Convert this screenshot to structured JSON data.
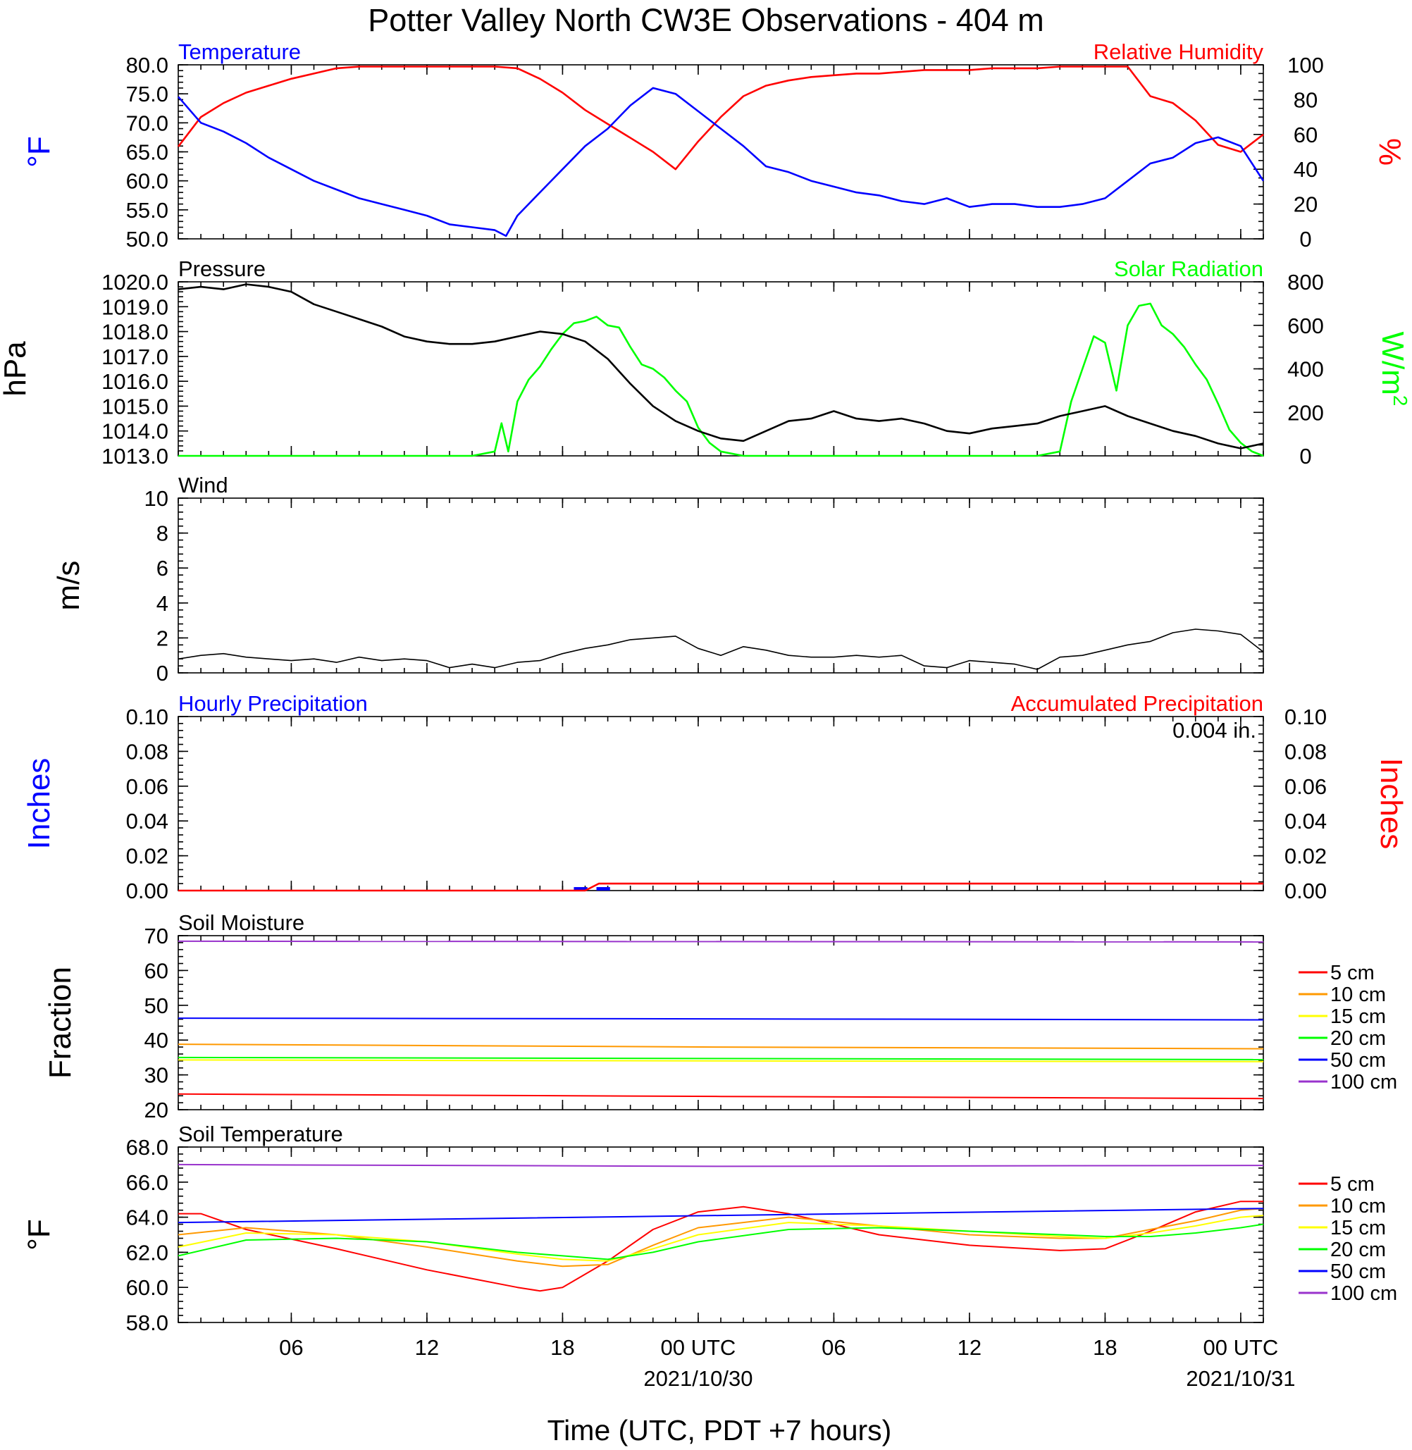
{
  "title": "Potter Valley North CW3E Observations - 404 m",
  "x_axis": {
    "label": "Time (UTC, PDT +7 hours)",
    "tick_labels": [
      "06",
      "12",
      "18",
      "00 UTC",
      "06",
      "12",
      "18",
      "00 UTC"
    ],
    "tick_hours": [
      6,
      12,
      18,
      24,
      30,
      36,
      42,
      48
    ],
    "date_labels": [
      {
        "hour": 24,
        "text": "2021/10/30"
      },
      {
        "hour": 48,
        "text": "2021/10/31"
      }
    ],
    "range_hours": [
      1,
      49
    ]
  },
  "colors": {
    "temperature": "#0000ff",
    "humidity": "#ff0000",
    "pressure": "#000000",
    "solar": "#00ff00",
    "wind_speed": "#000000",
    "wind_barb": "#ff0000",
    "hourly_precip": "#0000ff",
    "accum_precip": "#ff0000",
    "5 cm": "#ff0000",
    "10 cm": "#ff9900",
    "15 cm": "#ffff00",
    "20 cm": "#00ff00",
    "50 cm": "#0000ff",
    "100 cm": "#9933cc"
  },
  "panels": {
    "temp_rh": {
      "left_title": "Temperature",
      "right_title": "Relative Humidity",
      "left_ylabel": "°F",
      "right_ylabel": "%",
      "left_ticks": [
        "50.0",
        "55.0",
        "60.0",
        "65.0",
        "70.0",
        "75.0",
        "80.0"
      ],
      "right_ticks": [
        "0",
        "20",
        "40",
        "60",
        "80",
        "100"
      ]
    },
    "pressure_solar": {
      "left_title": "Pressure",
      "right_title": "Solar Radiation",
      "left_ylabel": "hPa",
      "right_ylabel": "W/m",
      "right_ylabel_sup": "2",
      "left_ticks": [
        "1013.0",
        "1014.0",
        "1015.0",
        "1016.0",
        "1017.0",
        "1018.0",
        "1019.0",
        "1020.0"
      ],
      "right_ticks": [
        "0",
        "200",
        "400",
        "600",
        "800"
      ]
    },
    "wind": {
      "left_title": "Wind",
      "left_ylabel": "m/s",
      "left_ticks": [
        "0",
        "2",
        "4",
        "6",
        "8",
        "10"
      ]
    },
    "precip": {
      "left_title": "Hourly Precipitation",
      "right_title": "Accumulated Precipitation",
      "total_label": "0.004 in.",
      "left_ylabel": "Inches",
      "right_ylabel": "Inches",
      "left_ticks": [
        "0.00",
        "0.02",
        "0.04",
        "0.06",
        "0.08",
        "0.10"
      ],
      "right_ticks": [
        "0.00",
        "0.02",
        "0.04",
        "0.06",
        "0.08",
        "0.10"
      ]
    },
    "soil_moisture": {
      "left_title": "Soil Moisture",
      "left_ylabel": "Fraction",
      "left_ticks": [
        "20",
        "30",
        "40",
        "50",
        "60",
        "70"
      ],
      "legend": [
        "5 cm",
        "10 cm",
        "15 cm",
        "20 cm",
        "50 cm",
        "100 cm"
      ]
    },
    "soil_temp": {
      "left_title": "Soil Temperature",
      "left_ylabel": "°F",
      "left_ticks": [
        "58.0",
        "60.0",
        "62.0",
        "64.0",
        "66.0",
        "68.0"
      ],
      "legend": [
        "5 cm",
        "10 cm",
        "15 cm",
        "20 cm",
        "50 cm",
        "100 cm"
      ]
    }
  },
  "chart_data": [
    {
      "type": "line",
      "title": "Temperature / Relative Humidity",
      "x_unit": "hours UTC from 2021/10/29 00 UTC",
      "ylim_left": [
        50,
        80
      ],
      "ylim_right": [
        0,
        100
      ],
      "series": [
        {
          "name": "Temperature",
          "axis": "left",
          "unit": "°F",
          "x": [
            1,
            2,
            3,
            4,
            5,
            6,
            7,
            8,
            9,
            10,
            11,
            12,
            13,
            14,
            15,
            15.5,
            16,
            17,
            18,
            19,
            20,
            21,
            22,
            23,
            24,
            25,
            26,
            27,
            28,
            29,
            30,
            31,
            32,
            33,
            34,
            35,
            36,
            37,
            38,
            39,
            40,
            41,
            42,
            43,
            44,
            45,
            46,
            47,
            48,
            49
          ],
          "y": [
            74.5,
            70,
            68.5,
            66.5,
            64,
            62,
            60,
            58.5,
            57,
            56,
            55,
            54,
            52.5,
            52,
            51.5,
            50.5,
            54,
            58,
            62,
            66,
            69,
            73,
            76,
            75,
            72,
            69,
            66,
            62.5,
            61.5,
            60,
            59,
            58,
            57.5,
            56.5,
            56,
            57,
            55.5,
            56,
            56,
            55.5,
            55.5,
            56,
            57,
            60,
            63,
            64,
            66.5,
            67.5,
            66,
            60
          ]
        },
        {
          "name": "Relative Humidity",
          "axis": "right",
          "unit": "%",
          "x": [
            1,
            2,
            3,
            4,
            5,
            6,
            7,
            8,
            9,
            10,
            11,
            12,
            13,
            14,
            15,
            16,
            17,
            18,
            19,
            20,
            21,
            22,
            23,
            24,
            25,
            26,
            27,
            28,
            29,
            30,
            31,
            32,
            33,
            34,
            35,
            36,
            37,
            38,
            39,
            40,
            41,
            42,
            43,
            44,
            45,
            46,
            47,
            48,
            49
          ],
          "y": [
            53,
            70,
            78,
            84,
            88,
            92,
            95,
            98,
            99,
            99,
            99,
            99,
            99,
            99,
            99,
            98,
            92,
            84,
            74,
            66,
            58,
            50,
            40,
            56,
            70,
            82,
            88,
            91,
            93,
            94,
            95,
            95,
            96,
            97,
            97,
            97,
            98,
            98,
            98,
            99,
            99,
            99,
            99,
            82,
            78,
            68,
            54,
            50,
            60
          ]
        }
      ]
    },
    {
      "type": "line",
      "title": "Pressure / Solar Radiation",
      "x_unit": "hours UTC from 2021/10/29 00 UTC",
      "ylim_left": [
        1013,
        1020
      ],
      "ylim_right": [
        0,
        800
      ],
      "series": [
        {
          "name": "Pressure",
          "axis": "left",
          "unit": "hPa",
          "x": [
            1,
            2,
            3,
            4,
            5,
            6,
            7,
            8,
            9,
            10,
            11,
            12,
            13,
            14,
            15,
            16,
            17,
            18,
            19,
            20,
            21,
            22,
            23,
            24,
            25,
            26,
            27,
            28,
            29,
            30,
            31,
            32,
            33,
            34,
            35,
            36,
            37,
            38,
            39,
            40,
            41,
            42,
            43,
            44,
            45,
            46,
            47,
            48,
            49
          ],
          "y": [
            1019.7,
            1019.8,
            1019.7,
            1019.9,
            1019.8,
            1019.6,
            1019.1,
            1018.8,
            1018.5,
            1018.2,
            1017.8,
            1017.6,
            1017.5,
            1017.5,
            1017.6,
            1017.8,
            1018.0,
            1017.9,
            1017.6,
            1016.9,
            1015.9,
            1015.0,
            1014.4,
            1014.0,
            1013.7,
            1013.6,
            1014.0,
            1014.4,
            1014.5,
            1014.8,
            1014.5,
            1014.4,
            1014.5,
            1014.3,
            1014.0,
            1013.9,
            1014.1,
            1014.2,
            1014.3,
            1014.6,
            1014.8,
            1015.0,
            1014.6,
            1014.3,
            1014.0,
            1013.8,
            1013.5,
            1013.3,
            1013.5
          ]
        },
        {
          "name": "Solar Radiation",
          "axis": "right",
          "unit": "W/m2",
          "x": [
            1,
            14,
            15,
            15.3,
            15.6,
            16,
            16.5,
            17,
            17.5,
            18,
            18.5,
            19,
            19.5,
            20,
            20.5,
            21,
            21.5,
            22,
            22.5,
            23,
            23.5,
            24,
            24.5,
            25,
            26,
            30,
            36,
            39,
            40,
            40.5,
            41,
            41.5,
            42,
            42.5,
            43,
            43.5,
            44,
            44.5,
            45,
            45.5,
            46,
            46.5,
            47,
            47.5,
            48,
            48.5,
            49
          ],
          "y": [
            0,
            0,
            20,
            150,
            20,
            250,
            350,
            410,
            490,
            560,
            610,
            620,
            640,
            600,
            590,
            500,
            420,
            400,
            360,
            300,
            250,
            130,
            60,
            20,
            0,
            0,
            0,
            0,
            20,
            250,
            400,
            550,
            520,
            300,
            600,
            690,
            700,
            600,
            560,
            500,
            420,
            350,
            240,
            120,
            60,
            20,
            0
          ]
        }
      ]
    },
    {
      "type": "line",
      "title": "Wind",
      "x_unit": "hours UTC from 2021/10/29 00 UTC",
      "ylim": [
        0,
        10
      ],
      "series": [
        {
          "name": "Wind speed",
          "unit": "m/s",
          "x": [
            1,
            2,
            3,
            4,
            5,
            6,
            7,
            8,
            9,
            10,
            11,
            12,
            13,
            14,
            15,
            16,
            17,
            18,
            19,
            20,
            21,
            22,
            23,
            24,
            25,
            26,
            27,
            28,
            29,
            30,
            31,
            32,
            33,
            34,
            35,
            36,
            37,
            38,
            39,
            40,
            41,
            42,
            43,
            44,
            45,
            46,
            47,
            48,
            49
          ],
          "y": [
            0.8,
            1.0,
            1.1,
            0.9,
            0.8,
            0.7,
            0.8,
            0.6,
            0.9,
            0.7,
            0.8,
            0.7,
            0.3,
            0.5,
            0.3,
            0.6,
            0.7,
            1.1,
            1.4,
            1.6,
            1.9,
            2.0,
            2.1,
            1.4,
            1.0,
            1.5,
            1.3,
            1.0,
            0.9,
            0.9,
            1.0,
            0.9,
            1.0,
            0.4,
            0.3,
            0.7,
            0.6,
            0.5,
            0.2,
            0.9,
            1.0,
            1.3,
            1.6,
            1.8,
            2.3,
            2.5,
            2.4,
            2.2,
            1.2
          ]
        }
      ]
    },
    {
      "type": "bar",
      "title": "Precipitation",
      "x_unit": "hours UTC from 2021/10/29 00 UTC",
      "ylim": [
        0,
        0.1
      ],
      "total_accumulated_in": 0.004,
      "series": [
        {
          "name": "Hourly Precipitation",
          "unit": "in",
          "x": [
            19,
            20
          ],
          "y": [
            0.002,
            0.002
          ]
        },
        {
          "name": "Accumulated Precipitation",
          "unit": "in",
          "x": [
            1,
            19,
            19.6,
            49
          ],
          "y": [
            0,
            0,
            0.004,
            0.004
          ]
        }
      ]
    },
    {
      "type": "line",
      "title": "Soil Moisture",
      "x_unit": "hours UTC from 2021/10/29 00 UTC",
      "ylim": [
        20,
        70
      ],
      "series": [
        {
          "name": "5 cm",
          "x": [
            1,
            25,
            49
          ],
          "y": [
            24.5,
            23.8,
            23.2
          ]
        },
        {
          "name": "10 cm",
          "x": [
            1,
            25,
            49
          ],
          "y": [
            38.8,
            38.0,
            37.5
          ]
        },
        {
          "name": "15 cm",
          "x": [
            1,
            25,
            49
          ],
          "y": [
            34.3,
            34.0,
            33.8
          ]
        },
        {
          "name": "20 cm",
          "x": [
            1,
            25,
            49
          ],
          "y": [
            35.0,
            34.7,
            34.4
          ]
        },
        {
          "name": "50 cm",
          "x": [
            1,
            25,
            49
          ],
          "y": [
            46.3,
            46.1,
            45.8
          ]
        },
        {
          "name": "100 cm",
          "x": [
            1,
            25,
            49
          ],
          "y": [
            68.4,
            68.3,
            68.2
          ]
        }
      ]
    },
    {
      "type": "line",
      "title": "Soil Temperature",
      "x_unit": "hours UTC from 2021/10/29 00 UTC",
      "ylim": [
        58,
        68
      ],
      "series": [
        {
          "name": "5 cm",
          "x": [
            1,
            2,
            4,
            8,
            12,
            16,
            17,
            18,
            20,
            22,
            24,
            26,
            28,
            32,
            36,
            40,
            42,
            44,
            46,
            48,
            49
          ],
          "y": [
            64.2,
            64.2,
            63.3,
            62.2,
            61.0,
            60.0,
            59.8,
            60.0,
            61.5,
            63.3,
            64.3,
            64.6,
            64.2,
            63.0,
            62.4,
            62.1,
            62.2,
            63.2,
            64.3,
            64.9,
            64.9
          ]
        },
        {
          "name": "10 cm",
          "x": [
            1,
            4,
            8,
            12,
            16,
            18,
            20,
            22,
            24,
            28,
            32,
            36,
            40,
            42,
            44,
            46,
            48,
            49
          ],
          "y": [
            63.0,
            63.4,
            63.0,
            62.3,
            61.5,
            61.2,
            61.3,
            62.4,
            63.4,
            64.0,
            63.5,
            63.0,
            62.8,
            62.8,
            63.3,
            63.8,
            64.4,
            64.5
          ]
        },
        {
          "name": "15 cm",
          "x": [
            1,
            4,
            8,
            12,
            16,
            18,
            20,
            22,
            24,
            28,
            32,
            36,
            40,
            42,
            44,
            46,
            48,
            49
          ],
          "y": [
            62.3,
            63.1,
            63.0,
            62.6,
            61.9,
            61.6,
            61.5,
            62.2,
            63.0,
            63.7,
            63.5,
            63.2,
            62.9,
            62.8,
            63.1,
            63.5,
            64.0,
            64.1
          ]
        },
        {
          "name": "20 cm",
          "x": [
            1,
            4,
            8,
            12,
            16,
            18,
            20,
            22,
            24,
            28,
            32,
            36,
            40,
            42,
            44,
            46,
            48,
            49
          ],
          "y": [
            61.8,
            62.7,
            62.8,
            62.6,
            62.0,
            61.8,
            61.6,
            62.0,
            62.6,
            63.3,
            63.4,
            63.2,
            63.0,
            62.9,
            62.9,
            63.1,
            63.4,
            63.6
          ]
        },
        {
          "name": "50 cm",
          "x": [
            1,
            13,
            25,
            37,
            49
          ],
          "y": [
            63.7,
            63.9,
            64.1,
            64.3,
            64.5
          ]
        },
        {
          "name": "100 cm",
          "x": [
            1,
            25,
            49
          ],
          "y": [
            67.0,
            66.9,
            66.95
          ]
        }
      ]
    }
  ]
}
